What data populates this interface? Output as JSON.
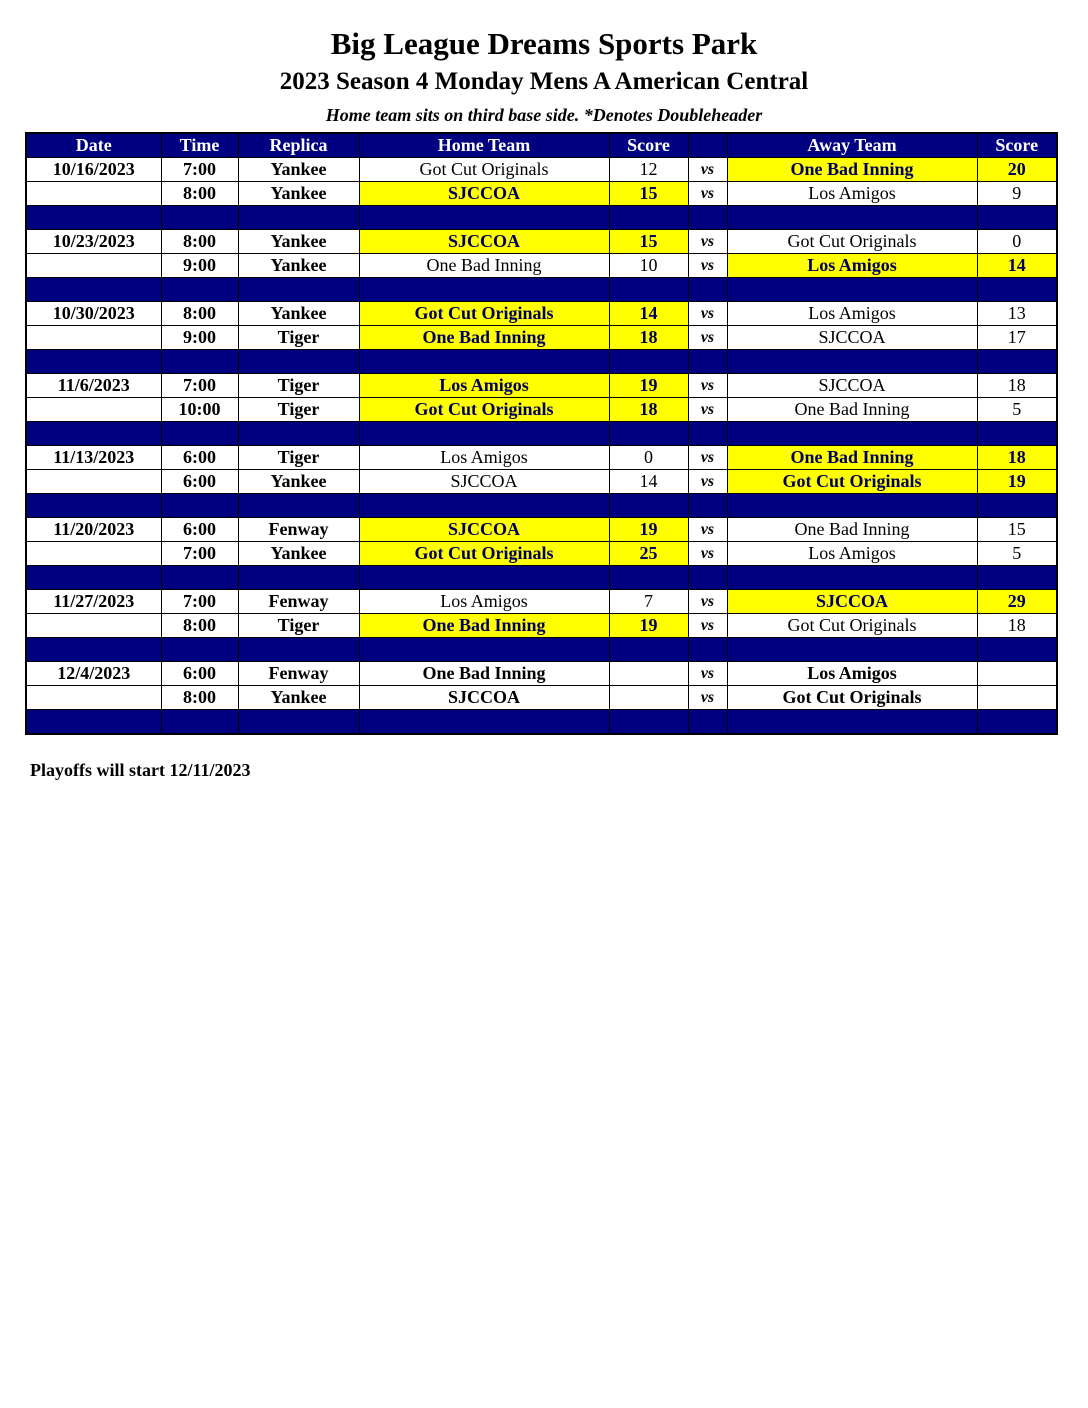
{
  "title": "Big League Dreams Sports Park",
  "subtitle": "2023 Season 4 Monday Mens A American Central",
  "note": "Home team sits on third base side.  *Denotes Doubleheader",
  "headers": [
    "Date",
    "Time",
    "Replica",
    "Home Team",
    "Score",
    "",
    "Away Team",
    "Score"
  ],
  "vs_label": "vs",
  "colors": {
    "header": "#000080",
    "winner": "#ffff00"
  },
  "weeks": [
    {
      "date": "10/16/2023",
      "games": [
        {
          "time": "7:00",
          "field": "Yankee",
          "home": "Got Cut Originals",
          "home_score": "12",
          "away": "One Bad Inning",
          "away_score": "20",
          "winner": "away"
        },
        {
          "time": "8:00",
          "field": "Yankee",
          "home": "SJCCOA",
          "home_score": "15",
          "away": "Los Amigos",
          "away_score": "9",
          "winner": "home"
        }
      ]
    },
    {
      "date": "10/23/2023",
      "games": [
        {
          "time": "8:00",
          "field": "Yankee",
          "home": "SJCCOA",
          "home_score": "15",
          "away": "Got Cut Originals",
          "away_score": "0",
          "winner": "home"
        },
        {
          "time": "9:00",
          "field": "Yankee",
          "home": "One Bad Inning",
          "home_score": "10",
          "away": "Los Amigos",
          "away_score": "14",
          "winner": "away"
        }
      ]
    },
    {
      "date": "10/30/2023",
      "games": [
        {
          "time": "8:00",
          "field": "Yankee",
          "home": "Got Cut Originals",
          "home_score": "14",
          "away": "Los Amigos",
          "away_score": "13",
          "winner": "home"
        },
        {
          "time": "9:00",
          "field": "Tiger",
          "home": "One Bad Inning",
          "home_score": "18",
          "away": "SJCCOA",
          "away_score": "17",
          "winner": "home"
        }
      ]
    },
    {
      "date": "11/6/2023",
      "games": [
        {
          "time": "7:00",
          "field": "Tiger",
          "home": "Los Amigos",
          "home_score": "19",
          "away": "SJCCOA",
          "away_score": "18",
          "winner": "home"
        },
        {
          "time": "10:00",
          "field": "Tiger",
          "home": "Got Cut Originals",
          "home_score": "18",
          "away": "One Bad Inning",
          "away_score": "5",
          "winner": "home"
        }
      ]
    },
    {
      "date": "11/13/2023",
      "games": [
        {
          "time": "6:00",
          "field": "Tiger",
          "home": "Los Amigos",
          "home_score": "0",
          "away": "One Bad Inning",
          "away_score": "18",
          "winner": "away"
        },
        {
          "time": "6:00",
          "field": "Yankee",
          "home": "SJCCOA",
          "home_score": "14",
          "away": "Got Cut Originals",
          "away_score": "19",
          "winner": "away"
        }
      ]
    },
    {
      "date": "11/20/2023",
      "games": [
        {
          "time": "6:00",
          "field": "Fenway",
          "home": "SJCCOA",
          "home_score": "19",
          "away": "One Bad Inning",
          "away_score": "15",
          "winner": "home"
        },
        {
          "time": "7:00",
          "field": "Yankee",
          "home": "Got Cut Originals",
          "home_score": "25",
          "away": "Los Amigos",
          "away_score": "5",
          "winner": "home"
        }
      ]
    },
    {
      "date": "11/27/2023",
      "games": [
        {
          "time": "7:00",
          "field": "Fenway",
          "home": "Los Amigos",
          "home_score": "7",
          "away": "SJCCOA",
          "away_score": "29",
          "winner": "away"
        },
        {
          "time": "8:00",
          "field": "Tiger",
          "home": "One Bad Inning",
          "home_score": "19",
          "away": "Got Cut Originals",
          "away_score": "18",
          "winner": "home"
        }
      ]
    },
    {
      "date": "12/4/2023",
      "games": [
        {
          "time": "6:00",
          "field": "Fenway",
          "home": "One Bad Inning",
          "home_score": "",
          "away": "Los Amigos",
          "away_score": "",
          "winner": ""
        },
        {
          "time": "8:00",
          "field": "Yankee",
          "home": "SJCCOA",
          "home_score": "",
          "away": "Got Cut Originals",
          "away_score": "",
          "winner": ""
        }
      ]
    }
  ],
  "footer": "Playoffs will start 12/11/2023"
}
